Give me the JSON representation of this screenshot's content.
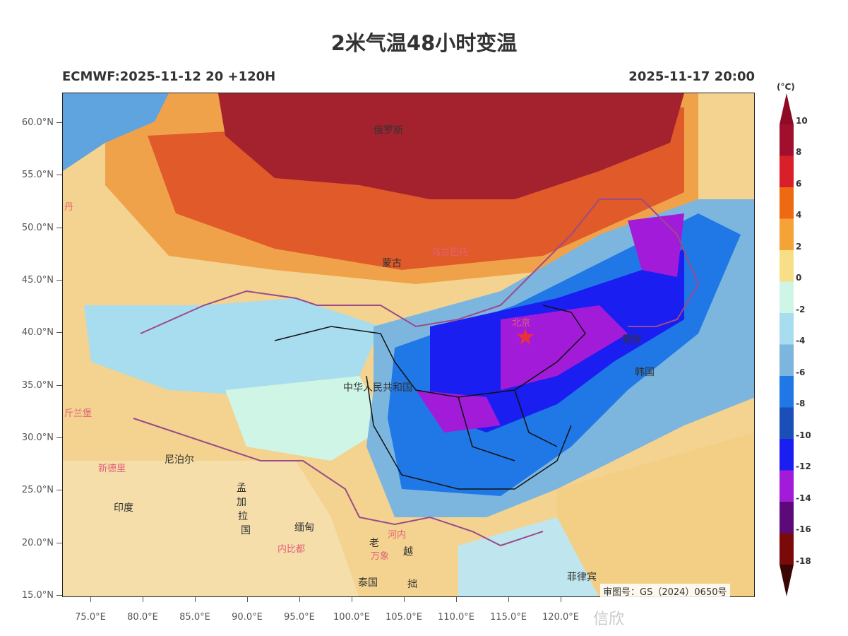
{
  "title": "2米气温48小时变温",
  "model_run": "ECMWF:2025-11-12 20 +120H",
  "valid_time": "2025-11-17 20:00",
  "lat_ticks": [
    "60.0°N",
    "55.0°N",
    "50.0°N",
    "45.0°N",
    "40.0°N",
    "35.0°N",
    "30.0°N",
    "25.0°N",
    "20.0°N",
    "15.0°N"
  ],
  "lon_ticks": [
    "75.0°E",
    "80.0°E",
    "85.0°E",
    "90.0°E",
    "95.0°E",
    "100.0°E",
    "105.0°E",
    "110.0°E",
    "115.0°E",
    "120.0°E"
  ],
  "colorbar": {
    "unit": "(°C)",
    "labels": [
      "10",
      "8",
      "6",
      "4",
      "2",
      "0",
      "-2",
      "-4",
      "-6",
      "-8",
      "-10",
      "-12",
      "-14",
      "-16",
      "-18"
    ],
    "colors": [
      "#a0102e",
      "#d81f2a",
      "#ee6a12",
      "#f5a236",
      "#f8de86",
      "#cff5e6",
      "#a8dcef",
      "#7cb6df",
      "#1f78e6",
      "#1a4fb8",
      "#1a1ef0",
      "#a21bd9",
      "#5c0a7a",
      "#7a0a0a"
    ]
  },
  "place_labels": {
    "russia": "俄罗斯",
    "mongolia": "蒙古",
    "ulaanbaatar": "乌兰巴托",
    "china": "中华人民共和国",
    "beijing": "北京",
    "north_korea": "朝鲜",
    "south_korea": "韩国",
    "nepal": "尼泊尔",
    "new_delhi": "新德里",
    "india": "印度",
    "bangladesh_1": "孟",
    "bangladesh_2": "加",
    "bangladesh_3": "拉",
    "bangladesh_4": "国",
    "myanmar": "缅甸",
    "naypyidaw": "内比都",
    "hanoi": "河内",
    "laos": "老",
    "vientiane": "万象",
    "viet_nam": "越",
    "thailand": "泰国",
    "cambodia": "拙",
    "philippines": "菲律宾",
    "dan": "丹",
    "xinlanbao": "斤兰堡"
  },
  "approval_number": "审图号：GS（2024）0650号",
  "watermark": "信欣"
}
